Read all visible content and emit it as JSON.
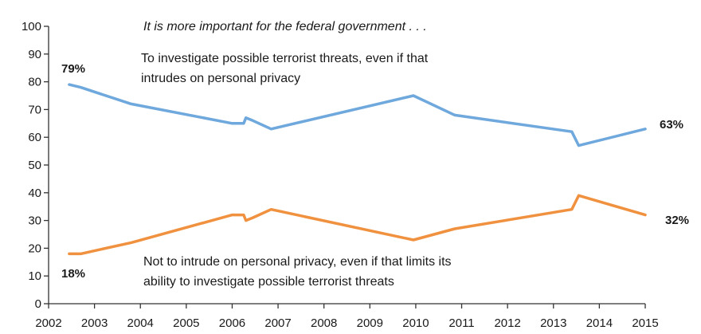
{
  "chart_data": {
    "type": "line",
    "title": "It is more important for the federal government . . .",
    "xlim": [
      2002,
      2015
    ],
    "ylim": [
      0,
      100
    ],
    "x_ticks": [
      "2002",
      "2003",
      "2004",
      "2005",
      "2006",
      "2007",
      "2008",
      "2009",
      "2010",
      "2011",
      "2012",
      "2013",
      "2014",
      "2015"
    ],
    "y_ticks": [
      "0",
      "10",
      "20",
      "30",
      "40",
      "50",
      "60",
      "70",
      "80",
      "90",
      "100"
    ],
    "grid": false,
    "series": [
      {
        "name": "To investigate possible terrorist threats, even if that intrudes on personal privacy",
        "name_lines": [
          "To investigate possible terrorist threats, even if that",
          "intrudes on personal privacy"
        ],
        "color": "#6fa8dc",
        "start_label": "79%",
        "end_label": "63%",
        "points": [
          [
            2002.45,
            79
          ],
          [
            2002.7,
            78
          ],
          [
            2003.8,
            72
          ],
          [
            2006.0,
            65
          ],
          [
            2006.25,
            65
          ],
          [
            2006.3,
            67
          ],
          [
            2006.45,
            66
          ],
          [
            2006.85,
            63
          ],
          [
            2009.95,
            75
          ],
          [
            2010.85,
            68
          ],
          [
            2013.4,
            62
          ],
          [
            2013.55,
            57
          ],
          [
            2015.0,
            63
          ]
        ]
      },
      {
        "name": "Not to intrude on personal privacy, even if that limits its ability to investigate possible terrorist threats",
        "name_lines": [
          "Not to intrude on personal privacy, even if that limits its",
          "ability to investigate possible terrorist threats"
        ],
        "color": "#f0913f",
        "start_label": "18%",
        "end_label": "32%",
        "points": [
          [
            2002.45,
            18
          ],
          [
            2002.7,
            18
          ],
          [
            2003.8,
            22
          ],
          [
            2006.0,
            32
          ],
          [
            2006.25,
            32
          ],
          [
            2006.3,
            30
          ],
          [
            2006.45,
            31
          ],
          [
            2006.85,
            34
          ],
          [
            2009.95,
            23
          ],
          [
            2010.85,
            27
          ],
          [
            2013.4,
            34
          ],
          [
            2013.55,
            39
          ],
          [
            2015.0,
            32
          ]
        ]
      }
    ]
  }
}
